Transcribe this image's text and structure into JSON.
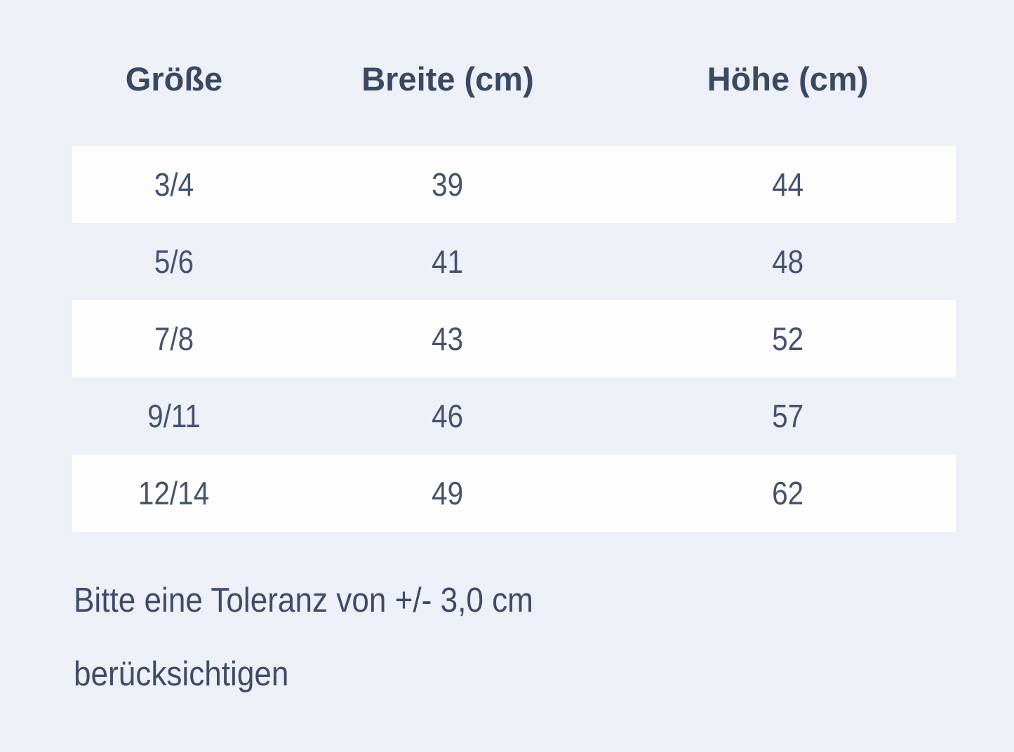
{
  "chart_data": {
    "type": "table",
    "columns": [
      "Größe",
      "Breite (cm)",
      "Höhe (cm)"
    ],
    "rows": [
      [
        "3/4",
        "39",
        "44"
      ],
      [
        "5/6",
        "41",
        "48"
      ],
      [
        "7/8",
        "43",
        "52"
      ],
      [
        "9/11",
        "46",
        "57"
      ],
      [
        "12/14",
        "49",
        "62"
      ]
    ],
    "note": "Bitte eine Toleranz von +/- 3,0 cm berücksichtigen"
  },
  "note": {
    "line1": "Bitte eine Toleranz von +/- 3,0 cm",
    "line2": "berücksichtigen"
  },
  "colors": {
    "background": "#edf0f7",
    "striped_row": "#fdfdfd",
    "text": "#44506b",
    "header_text": "#3b4862"
  }
}
